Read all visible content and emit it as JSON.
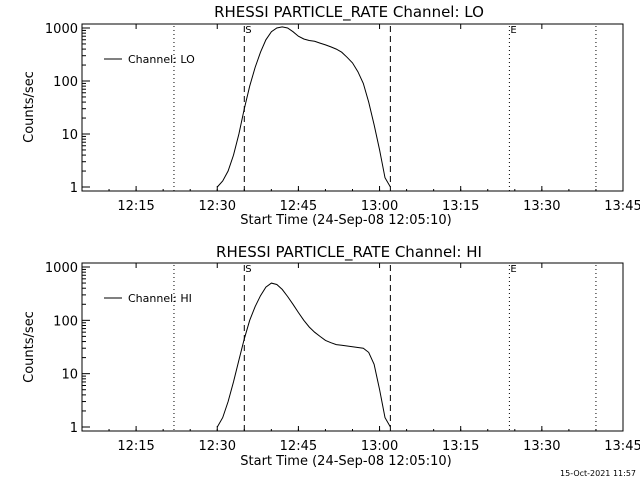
{
  "footer_timestamp": "15-Oct-2021 11:57",
  "chart_data": [
    {
      "type": "line",
      "title": "RHESSI PARTICLE_RATE Channel: LO",
      "xlabel": "Start Time (24-Sep-08 12:05:10)",
      "ylabel": "Counts/sec",
      "yscale": "log",
      "ylim": [
        1,
        1000
      ],
      "xlim": [
        "12:05",
        "13:45"
      ],
      "xticks": [
        "12:15",
        "12:30",
        "12:45",
        "13:00",
        "13:15",
        "13:30",
        "13:45"
      ],
      "yticks": [
        "1",
        "10",
        "100",
        "1000"
      ],
      "legend": {
        "position": "top-left",
        "entries": [
          "Channel: LO"
        ]
      },
      "markers": [
        {
          "label": "S",
          "time": "12:35",
          "style": "dashed"
        },
        {
          "label": "",
          "time": "13:02",
          "style": "dashed"
        },
        {
          "label": "",
          "time": "12:22",
          "style": "dotted"
        },
        {
          "label": "E",
          "time": "13:24",
          "style": "dotted"
        },
        {
          "label": "",
          "time": "13:40",
          "style": "dotted"
        }
      ],
      "series": [
        {
          "name": "Channel: LO",
          "x": [
            "12:30",
            "12:31",
            "12:32",
            "12:33",
            "12:34",
            "12:35",
            "12:36",
            "12:37",
            "12:38",
            "12:39",
            "12:40",
            "12:41",
            "12:42",
            "12:43",
            "12:44",
            "12:45",
            "12:46",
            "12:47",
            "12:48",
            "12:49",
            "12:50",
            "12:51",
            "12:52",
            "12:53",
            "12:54",
            "12:55",
            "12:56",
            "12:57",
            "12:58",
            "12:59",
            "13:00",
            "13:01",
            "13:02"
          ],
          "y": [
            1,
            1.3,
            2,
            4,
            10,
            30,
            80,
            180,
            350,
            600,
            850,
            1000,
            1050,
            1000,
            850,
            700,
            620,
            580,
            560,
            520,
            480,
            440,
            400,
            350,
            280,
            220,
            150,
            90,
            40,
            15,
            5,
            1.5,
            1
          ]
        }
      ]
    },
    {
      "type": "line",
      "title": "RHESSI PARTICLE_RATE Channel: HI",
      "xlabel": "Start Time (24-Sep-08 12:05:10)",
      "ylabel": "Counts/sec",
      "yscale": "log",
      "ylim": [
        1,
        1000
      ],
      "xlim": [
        "12:05",
        "13:45"
      ],
      "xticks": [
        "12:15",
        "12:30",
        "12:45",
        "13:00",
        "13:15",
        "13:30",
        "13:45"
      ],
      "yticks": [
        "1",
        "10",
        "100",
        "1000"
      ],
      "legend": {
        "position": "top-left",
        "entries": [
          "Channel: HI"
        ]
      },
      "markers": [
        {
          "label": "S",
          "time": "12:35",
          "style": "dashed"
        },
        {
          "label": "",
          "time": "13:02",
          "style": "dashed"
        },
        {
          "label": "",
          "time": "12:22",
          "style": "dotted"
        },
        {
          "label": "E",
          "time": "13:24",
          "style": "dotted"
        },
        {
          "label": "",
          "time": "13:40",
          "style": "dotted"
        }
      ],
      "series": [
        {
          "name": "Channel: HI",
          "x": [
            "12:30",
            "12:31",
            "12:32",
            "12:33",
            "12:34",
            "12:35",
            "12:36",
            "12:37",
            "12:38",
            "12:39",
            "12:40",
            "12:41",
            "12:42",
            "12:43",
            "12:44",
            "12:45",
            "12:46",
            "12:47",
            "12:48",
            "12:49",
            "12:50",
            "12:51",
            "12:52",
            "12:53",
            "12:54",
            "12:55",
            "12:56",
            "12:57",
            "12:58",
            "12:59",
            "13:00",
            "13:01",
            "13:02"
          ],
          "y": [
            1,
            1.5,
            3,
            7,
            18,
            45,
            100,
            180,
            290,
            420,
            500,
            470,
            380,
            280,
            200,
            140,
            100,
            75,
            60,
            50,
            42,
            38,
            35,
            34,
            33,
            32,
            31,
            30,
            25,
            15,
            5,
            1.5,
            1
          ]
        }
      ]
    }
  ]
}
